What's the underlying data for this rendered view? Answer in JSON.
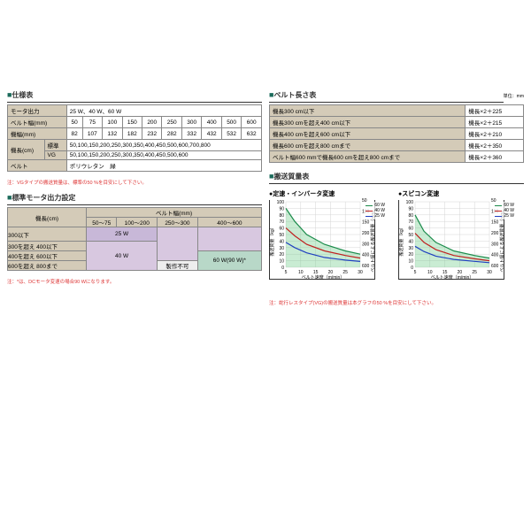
{
  "spec": {
    "title": "仕様表",
    "rows": [
      {
        "label": "モータ出力",
        "val": "25 W、40 W、60 W",
        "span": true
      },
      {
        "label": "ベルト幅(mm)",
        "cells": [
          "50",
          "75",
          "100",
          "150",
          "200",
          "250",
          "300",
          "400",
          "500",
          "600"
        ]
      },
      {
        "label": "機幅(mm)",
        "cells": [
          "82",
          "107",
          "132",
          "182",
          "232",
          "282",
          "332",
          "432",
          "532",
          "632"
        ]
      },
      {
        "label": "機長(cm)",
        "sub": "標準",
        "val": "50,100,150,200,250,300,350,400,450,500,600,700,800"
      },
      {
        "label": "",
        "sub": "VG",
        "val": "50,100,150,200,250,300,350,400,450,500,600"
      },
      {
        "label": "ベルト",
        "val": "ポリウレタン　緑",
        "span": true
      }
    ],
    "note": "注：VGタイプの搬送質量は、標準の50 %を目安にして下さい。"
  },
  "motor": {
    "title": "標準モータ出力設定",
    "row_label": "機長(cm)",
    "col_label": "ベルト幅(mm)",
    "cols": [
      "50～75",
      "100～200",
      "250～300",
      "400～600"
    ],
    "rows": [
      "300以下",
      "300を超え 400以下",
      "400を超え 600以下",
      "600を超え 800まで"
    ],
    "w25": "25 W",
    "w40": "40 W",
    "w60": "60 W(90 W)*",
    "nf": "製作不可",
    "note": "注：*は、DCモータ変速の場合90 Wになります。"
  },
  "belt_len": {
    "title": "ベルト長さ表",
    "unit": "単位：mm",
    "rows": [
      [
        "機長300 cm以下",
        "機長×2＋225"
      ],
      [
        "機長300 cmを超え400 cm以下",
        "機長×2＋215"
      ],
      [
        "機長400 cmを超え600 cm以下",
        "機長×2＋210"
      ],
      [
        "機長600 cmを超え800 cmまで",
        "機長×2＋350"
      ],
      [
        "ベルト幅600 mmで機長600 cmを超え800 cmまで",
        "機長×2＋360"
      ]
    ]
  },
  "mass": {
    "title": "搬送質量表",
    "chart1_title": "●定速・インバータ変速",
    "chart2_title": "●スピコン変速",
    "xlabel": "ベルト速度（m/min）",
    "ylabel_l": "搬送質量（kg）",
    "ylabel_r": "ベルト幅による搬送質量（mm）",
    "legend": [
      {
        "label": "60 W",
        "color": "#1b8b4b"
      },
      {
        "label": "40 W",
        "color": "#c02020"
      },
      {
        "label": "25 W",
        "color": "#2040c0"
      }
    ],
    "yticks": [
      0,
      10,
      20,
      30,
      40,
      50,
      60,
      70,
      80,
      90,
      100
    ],
    "xticks": [
      5,
      10,
      15,
      20,
      25,
      30
    ],
    "yticks2": [
      50,
      100,
      150,
      200,
      300,
      400,
      600
    ],
    "chart1": {
      "s60": [
        [
          5,
          90
        ],
        [
          8,
          70
        ],
        [
          12,
          50
        ],
        [
          18,
          35
        ],
        [
          25,
          25
        ],
        [
          30,
          20
        ]
      ],
      "s40": [
        [
          5,
          60
        ],
        [
          8,
          48
        ],
        [
          12,
          35
        ],
        [
          18,
          25
        ],
        [
          25,
          18
        ],
        [
          30,
          14
        ]
      ],
      "s25": [
        [
          5,
          38
        ],
        [
          8,
          30
        ],
        [
          12,
          22
        ],
        [
          18,
          15
        ],
        [
          25,
          11
        ],
        [
          30,
          9
        ]
      ],
      "fill": [
        [
          5,
          90
        ],
        [
          8,
          70
        ],
        [
          12,
          50
        ],
        [
          18,
          35
        ],
        [
          25,
          25
        ],
        [
          30,
          20
        ],
        [
          30,
          0
        ],
        [
          5,
          0
        ]
      ]
    },
    "chart2": {
      "s60": [
        [
          5,
          80
        ],
        [
          8,
          55
        ],
        [
          12,
          38
        ],
        [
          18,
          25
        ],
        [
          25,
          18
        ],
        [
          30,
          14
        ]
      ],
      "s40": [
        [
          5,
          52
        ],
        [
          8,
          38
        ],
        [
          12,
          27
        ],
        [
          18,
          18
        ],
        [
          25,
          13
        ],
        [
          30,
          10
        ]
      ],
      "s25": [
        [
          5,
          32
        ],
        [
          8,
          24
        ],
        [
          12,
          17
        ],
        [
          18,
          12
        ],
        [
          25,
          9
        ],
        [
          30,
          7
        ]
      ],
      "fill": [
        [
          5,
          80
        ],
        [
          8,
          55
        ],
        [
          12,
          38
        ],
        [
          18,
          25
        ],
        [
          25,
          18
        ],
        [
          30,
          14
        ],
        [
          30,
          0
        ],
        [
          5,
          0
        ]
      ]
    },
    "note": "注：蛇行レスタイプ(VG)の搬送質量は本グラフの50 %を目安にして下さい。"
  },
  "colors": {
    "grid": "#ccc",
    "fill": "rgba(100,200,130,0.35)"
  }
}
